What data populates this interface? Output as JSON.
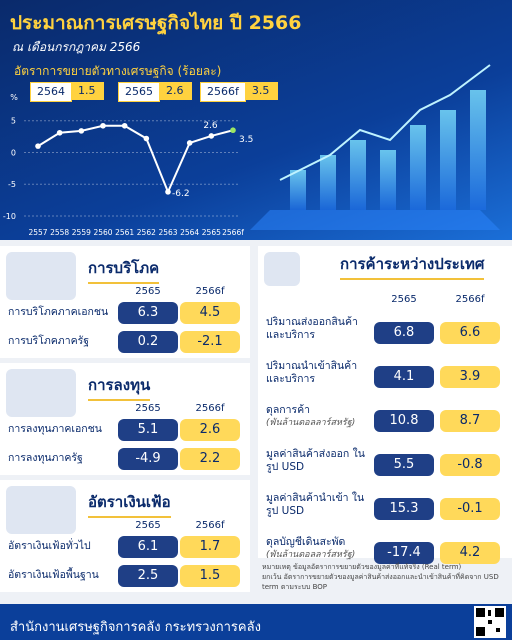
{
  "header": {
    "title": "ประมาณการเศรษฐกิจไทย ปี 2566",
    "subtitle": "ณ เดือนกรกฎาคม 2566"
  },
  "growth_chart": {
    "type": "line",
    "title": "อัตราการขยายตัวทางเศรษฐกิจ (ร้อยละ)",
    "highlights": [
      {
        "year": "2564",
        "value": 1.5
      },
      {
        "year": "2565",
        "value": 2.6
      },
      {
        "year": "2566f",
        "value": 3.5
      }
    ],
    "unit_label": "%",
    "x": [
      "2557",
      "2558",
      "2559",
      "2560",
      "2561",
      "2562",
      "2563",
      "2564",
      "2565",
      "2566f"
    ],
    "values": [
      1.0,
      3.1,
      3.4,
      4.2,
      4.2,
      2.2,
      -6.2,
      1.5,
      2.6,
      3.5
    ],
    "value_labels": [
      null,
      null,
      null,
      null,
      null,
      null,
      "-6.2",
      null,
      "2.6",
      "3.5"
    ],
    "ylim": [
      -10,
      7
    ],
    "yticks": [
      5,
      0,
      -5,
      -10
    ],
    "color": "#ffffff"
  },
  "sections": [
    {
      "title": "การบริโภค",
      "year_headers": [
        "2565",
        "2566f"
      ],
      "rows": [
        {
          "label": "การบริโภคภาคเอกชน",
          "values": [
            6.3,
            4.5
          ]
        },
        {
          "label": "การบริโภคภาครัฐ",
          "values": [
            0.2,
            -2.1
          ]
        }
      ]
    },
    {
      "title": "การลงทุน",
      "year_headers": [
        "2565",
        "2566f"
      ],
      "rows": [
        {
          "label": "การลงทุนภาคเอกชน",
          "values": [
            5.1,
            2.6
          ]
        },
        {
          "label": "การลงทุนภาครัฐ",
          "values": [
            -4.9,
            2.2
          ]
        }
      ]
    },
    {
      "title": "อัตราเงินเฟ้อ",
      "year_headers": [
        "2565",
        "2566f"
      ],
      "rows": [
        {
          "label": "อัตราเงินเฟ้อทั่วไป",
          "values": [
            6.1,
            1.7
          ]
        },
        {
          "label": "อัตราเงินเฟ้อพื้นฐาน",
          "values": [
            2.5,
            1.5
          ]
        }
      ]
    },
    {
      "title": "การค้าระหว่างประเทศ",
      "year_headers": [
        "2565",
        "2566f"
      ],
      "rows": [
        {
          "label": "ปริมาณส่งออกสินค้า และบริการ",
          "values": [
            6.8,
            6.6
          ]
        },
        {
          "label": "ปริมาณนำเข้าสินค้า และบริการ",
          "values": [
            4.1,
            3.9
          ]
        },
        {
          "label": "ดุลการค้า",
          "note": "(พันล้านดอลลาร์สหรัฐ)",
          "values": [
            10.8,
            8.7
          ]
        },
        {
          "label": "มูลค่าสินค้าส่งออก ในรูป USD",
          "values": [
            5.5,
            -0.8
          ]
        },
        {
          "label": "มูลค่าสินค้านำเข้า ในรูป USD",
          "values": [
            15.3,
            -0.1
          ]
        },
        {
          "label": "ดุลบัญชีเดินสะพัด",
          "note": "(พันล้านดอลลาร์สหรัฐ)",
          "values": [
            -17.4,
            4.2
          ]
        }
      ]
    }
  ],
  "notes": [
    "หมายเหตุ ข้อมูลอัตราการขยายตัวของมูลค่าที่แท้จริง (Real term)",
    "ยกเว้น อัตราการขยายตัวของมูลค่าสินค้าส่งออกและนำเข้าสินค้าที่คิดจาก USD term ตามระบบ BOP"
  ],
  "footer": {
    "text": "สำนักงานเศรษฐกิจการคลัง กระทรวงการคลัง"
  }
}
